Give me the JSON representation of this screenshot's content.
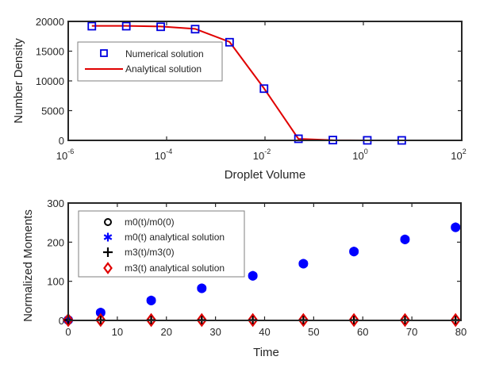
{
  "chart_data": [
    {
      "type": "line",
      "xscale": "log",
      "title": "",
      "xlabel": "Droplet Volume",
      "ylabel": "Number Density",
      "xlim_log10": [
        -6,
        2
      ],
      "ylim": [
        0,
        20000
      ],
      "x_ticks": [
        {
          "base": "10",
          "exp": "-6",
          "log10": -6
        },
        {
          "base": "10",
          "exp": "-4",
          "log10": -4
        },
        {
          "base": "10",
          "exp": "-2",
          "log10": -2
        },
        {
          "base": "10",
          "exp": "0",
          "log10": 0
        },
        {
          "base": "10",
          "exp": "2",
          "log10": 2
        }
      ],
      "y_ticks": [
        "0",
        "5000",
        "10000",
        "15000",
        "20000"
      ],
      "y_tick_values": [
        0,
        5000,
        10000,
        15000,
        20000
      ],
      "x_log10": [
        -5.52,
        -4.82,
        -4.12,
        -3.42,
        -2.72,
        -2.02,
        -1.32,
        -0.62,
        0.08,
        0.78
      ],
      "series": [
        {
          "name": "Numerical solution",
          "marker": "square",
          "color": "#0000e0",
          "values": [
            19200,
            19200,
            19100,
            18700,
            16500,
            8700,
            270,
            50,
            10,
            0
          ]
        },
        {
          "name": "Analytical solution",
          "marker": "none",
          "line": "solid",
          "color": "#e00000",
          "values": [
            19250,
            19250,
            19150,
            18750,
            16550,
            8750,
            250,
            40,
            5,
            0
          ]
        }
      ],
      "legend": {
        "position": "upper-left",
        "entries": [
          "Numerical solution",
          "Analytical solution"
        ]
      },
      "grid": false
    },
    {
      "type": "scatter",
      "title": "",
      "xlabel": "Time",
      "ylabel": "Normalized Moments",
      "xlim": [
        0,
        80
      ],
      "ylim": [
        0,
        300
      ],
      "x_ticks": [
        "0",
        "10",
        "20",
        "30",
        "40",
        "50",
        "60",
        "70",
        "80"
      ],
      "x_tick_values": [
        0,
        10,
        20,
        30,
        40,
        50,
        60,
        70,
        80
      ],
      "y_ticks": [
        "0",
        "100",
        "200",
        "300"
      ],
      "y_tick_values": [
        0,
        100,
        200,
        300
      ],
      "x": [
        0,
        6.6,
        16.9,
        27.2,
        37.6,
        47.9,
        58.2,
        68.6,
        78.9
      ],
      "series": [
        {
          "name": "m0(t)/m0(0)",
          "marker": "circle",
          "color": "#000000",
          "values": [
            1,
            20,
            51,
            82,
            114,
            145,
            176,
            207,
            238
          ]
        },
        {
          "name": "m0(t) analytical solution",
          "marker": "asterisk",
          "color": "#0000ff",
          "values": [
            1,
            20,
            51,
            82,
            114,
            145,
            176,
            207,
            238
          ]
        },
        {
          "name": "m3(t)/m3(0)",
          "marker": "plus",
          "color": "#000000",
          "values": [
            1,
            1,
            1,
            1,
            1,
            1,
            1,
            1,
            1
          ]
        },
        {
          "name": "m3(t) analytical solution",
          "marker": "diamond",
          "color": "#e00000",
          "values": [
            1,
            1,
            1,
            1,
            1,
            1,
            1,
            1,
            1
          ]
        }
      ],
      "legend": {
        "position": "upper-left",
        "entries": [
          "m0(t)/m0(0)",
          "m0(t) analytical solution",
          "m3(t)/m3(0)",
          "m3(t) analytical solution"
        ]
      },
      "grid": false
    }
  ]
}
